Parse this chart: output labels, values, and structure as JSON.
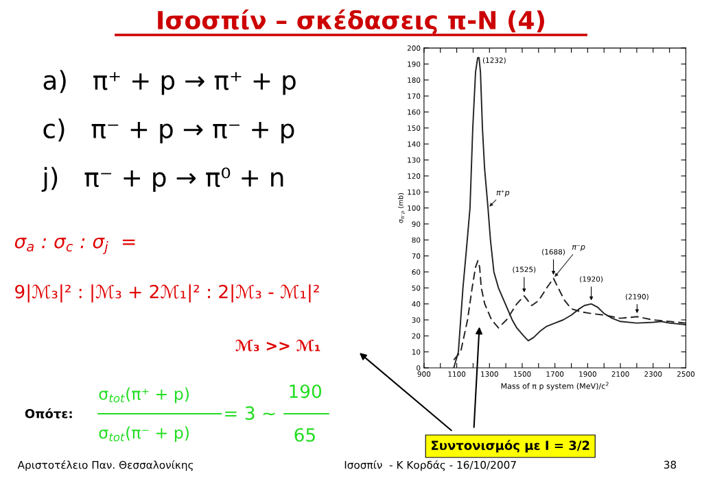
{
  "chart_data": {
    "type": "line",
    "title": "Ισοσπίν – σκέδασεις π-N (4)",
    "xlabel": "Mass of π p system (MeV)/c$^{2}$",
    "ylabel": "σ$_{π⁻p}$ (mb)",
    "series": [
      {
        "name": "π⁺p",
        "color": "#222222",
        "line_style": "solid",
        "x": [
          1082,
          1110,
          1138,
          1160,
          1181,
          1198,
          1215,
          1228,
          1236,
          1245,
          1257,
          1270,
          1291,
          1306,
          1327,
          1355,
          1397,
          1439,
          1467,
          1509,
          1537,
          1570,
          1610,
          1650,
          1700,
          1750,
          1800,
          1850,
          1880,
          1922,
          1960,
          2000,
          2050,
          2100,
          2200,
          2300,
          2350,
          2400,
          2500
        ],
        "values": [
          0,
          10,
          50,
          75,
          100,
          150,
          185,
          194,
          194,
          185,
          150,
          125,
          100,
          80,
          60,
          50,
          40,
          30,
          25,
          20,
          17,
          19,
          23,
          26,
          28,
          30,
          33,
          37,
          39,
          40,
          38,
          34,
          31,
          29,
          28,
          28.5,
          29,
          28,
          27
        ]
      },
      {
        "name": "π⁻p",
        "color": "#222222",
        "line_style": "dashed",
        "x": [
          1082,
          1124,
          1166,
          1194,
          1215,
          1229,
          1240,
          1250,
          1271,
          1313,
          1355,
          1404,
          1467,
          1512,
          1535,
          1558,
          1600,
          1650,
          1691,
          1720,
          1760,
          1800,
          1859,
          1920,
          2000,
          2100,
          2202,
          2300,
          2400,
          2500
        ],
        "values": [
          5,
          10,
          30,
          50,
          63,
          67,
          63,
          50,
          40,
          30,
          25,
          30,
          40,
          45,
          42,
          39,
          42,
          50,
          56,
          50,
          42,
          37,
          35,
          34,
          33,
          31,
          32,
          30,
          29,
          28
        ]
      }
    ],
    "xlim": [
      900,
      2500
    ],
    "ylim": [
      0,
      200
    ],
    "xticks": [
      900,
      {
        "value": 1000,
        "label": null
      },
      1100,
      {
        "value": 1200,
        "label": null
      },
      1300,
      {
        "value": 1400,
        "label": null
      },
      1500,
      {
        "value": 1600,
        "label": null
      },
      1700,
      {
        "value": 1800,
        "label": null
      },
      1900,
      {
        "value": 2000,
        "label": null
      },
      2100,
      {
        "value": 2200,
        "label": null
      },
      2300,
      {
        "value": 2400,
        "label": null
      },
      2500
    ],
    "yticks": [
      0,
      10,
      20,
      30,
      40,
      50,
      60,
      70,
      80,
      90,
      100,
      110,
      120,
      130,
      140,
      150,
      160,
      170,
      180,
      190,
      200
    ],
    "grid": false,
    "legend": false,
    "annotations": [
      "a)   π⁺ + p → π⁺ + p",
      "c)   π⁻ + p → π⁻ + p",
      "j)   π⁻ + p → π⁰ + n",
      "σ$_{a}$ : σ$_{c}$ : σ$_{j}$  =",
      "9|ℳ₃|² : |ℳ₃ + 2ℳ₁|² : 2|ℳ₃ - ℳ₁|²",
      "ℳ₃ >> ℳ₁",
      "Οπότε:",
      "σ$_{tot}$(π⁺ + p)",
      "σ$_{tot}$(π⁻ + p)",
      "= 3 ~",
      "190",
      "65",
      "Συντονισμός με I = 3/2",
      {
        "text": "(1232)",
        "x": 1232,
        "y": 194
      },
      {
        "text": "(1525)",
        "x": 1512,
        "y": 45
      },
      {
        "text": "(1688)",
        "x": 1691,
        "y": 56
      },
      {
        "text": "(1920)",
        "x": 1922,
        "y": 40
      },
      {
        "text": "(2190)",
        "x": 2202,
        "y": 32
      },
      "Αριστοτέλειο Παν. Θεσσαλονίκης",
      "Ισοσπίν  - Κ Κορδάς - 16/10/2007",
      "38"
    ]
  }
}
